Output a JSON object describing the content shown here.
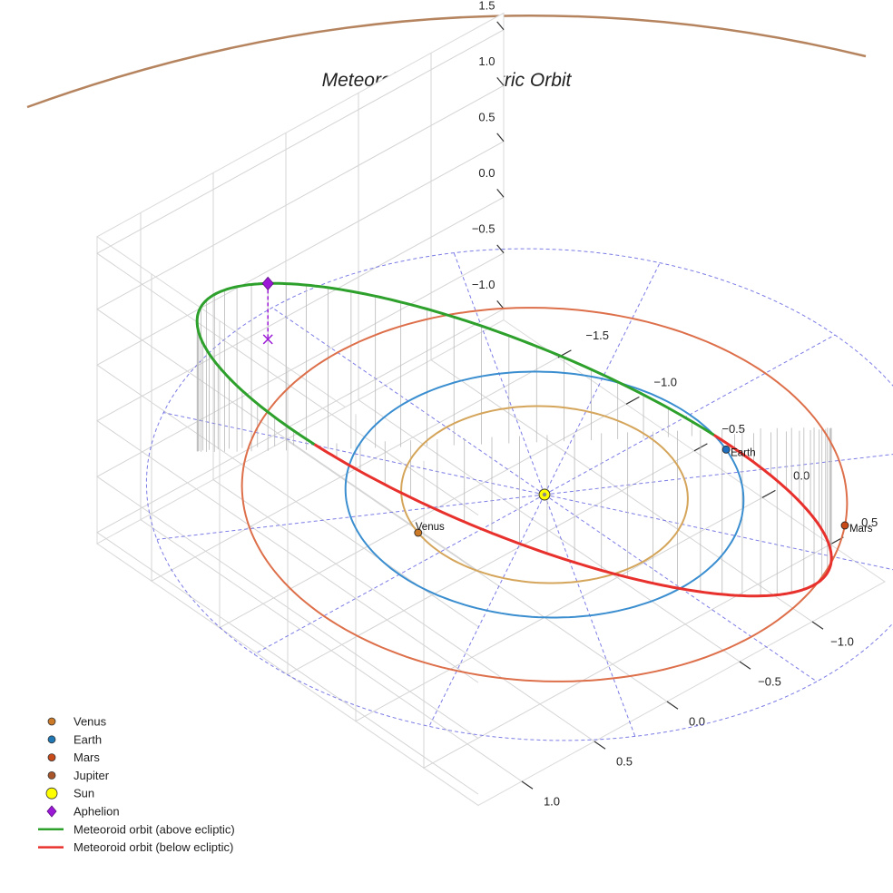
{
  "chart_data": {
    "type": "3d-line",
    "title": "Meteoroid's Heliocentric Orbit",
    "axes": {
      "x": {
        "ticks": [
          -1.5,
          -1.0,
          -0.5,
          0.0,
          0.5
        ],
        "tick_labels": [
          "−1.5",
          "−1.0",
          "−0.5",
          "0.0",
          "0.5"
        ],
        "range": [
          -1.9,
          0.9
        ]
      },
      "y": {
        "ticks": [
          -1.0,
          -0.5,
          0.0,
          0.5,
          1.0
        ],
        "tick_labels": [
          "−1.0",
          "−0.5",
          "0.0",
          "0.5",
          "1.0"
        ],
        "range": [
          -1.5,
          1.3
        ]
      },
      "z": {
        "ticks": [
          -1.0,
          -0.5,
          0.0,
          0.5,
          1.0,
          1.5
        ],
        "tick_labels": [
          "−1.0",
          "−0.5",
          "0.0",
          "0.5",
          "1.0",
          "1.5"
        ],
        "range": [
          -1.1,
          1.65
        ]
      }
    },
    "planets": [
      {
        "name": "Venus",
        "orbit_radius_au": 0.72,
        "angle_deg": 105,
        "color": "#cc7a28",
        "orbit_color": "#d4a55a",
        "label": "Venus"
      },
      {
        "name": "Earth",
        "orbit_radius_au": 1.0,
        "angle_deg": -71,
        "color": "#1f6fc0",
        "orbit_color": "#3a8ed0",
        "label": "Earth"
      },
      {
        "name": "Mars",
        "orbit_radius_au": 1.52,
        "angle_deg": -40,
        "color": "#c84a18",
        "orbit_color": "#dd6f4a",
        "label": "Mars"
      },
      {
        "name": "Jupiter",
        "color": "#a8552a",
        "orbit_color": "#b5845f"
      }
    ],
    "sun": {
      "name": "Sun",
      "color": "#ffff00"
    },
    "aphelion": {
      "name": "Aphelion",
      "color": "#9b19d6",
      "ecliptic_angle_deg": 145,
      "distance_au": 1.42,
      "height_au": 1.5
    },
    "meteoroid_orbit": {
      "ascending_node_au": [
        0.2,
        -0.98
      ],
      "descending_node_au": [
        -1.05,
        0.6
      ],
      "above_ecliptic": {
        "name": "Meteoroid orbit (above ecliptic)",
        "color": "#2ea02c"
      },
      "below_ecliptic": {
        "name": "Meteoroid orbit (below ecliptic)",
        "color": "#e8302c"
      }
    },
    "reference_grid": {
      "radius_au": 2.0,
      "spokes": 12,
      "color": "#5b5be0"
    },
    "legend": [
      {
        "label": "Venus",
        "marker": "circle",
        "color": "#cc7a28"
      },
      {
        "label": "Earth",
        "marker": "circle",
        "color": "#1f77b4"
      },
      {
        "label": "Mars",
        "marker": "circle",
        "color": "#c84a18"
      },
      {
        "label": "Jupiter",
        "marker": "circle",
        "color": "#a8552a"
      },
      {
        "label": "Sun",
        "marker": "circle",
        "color": "#ffff00"
      },
      {
        "label": "Aphelion",
        "marker": "diamond",
        "color": "#9b19d6"
      },
      {
        "label": "Meteoroid orbit (above ecliptic)",
        "marker": "line",
        "color": "#2ea02c"
      },
      {
        "label": "Meteoroid orbit (below ecliptic)",
        "marker": "line",
        "color": "#e8302c"
      }
    ]
  }
}
